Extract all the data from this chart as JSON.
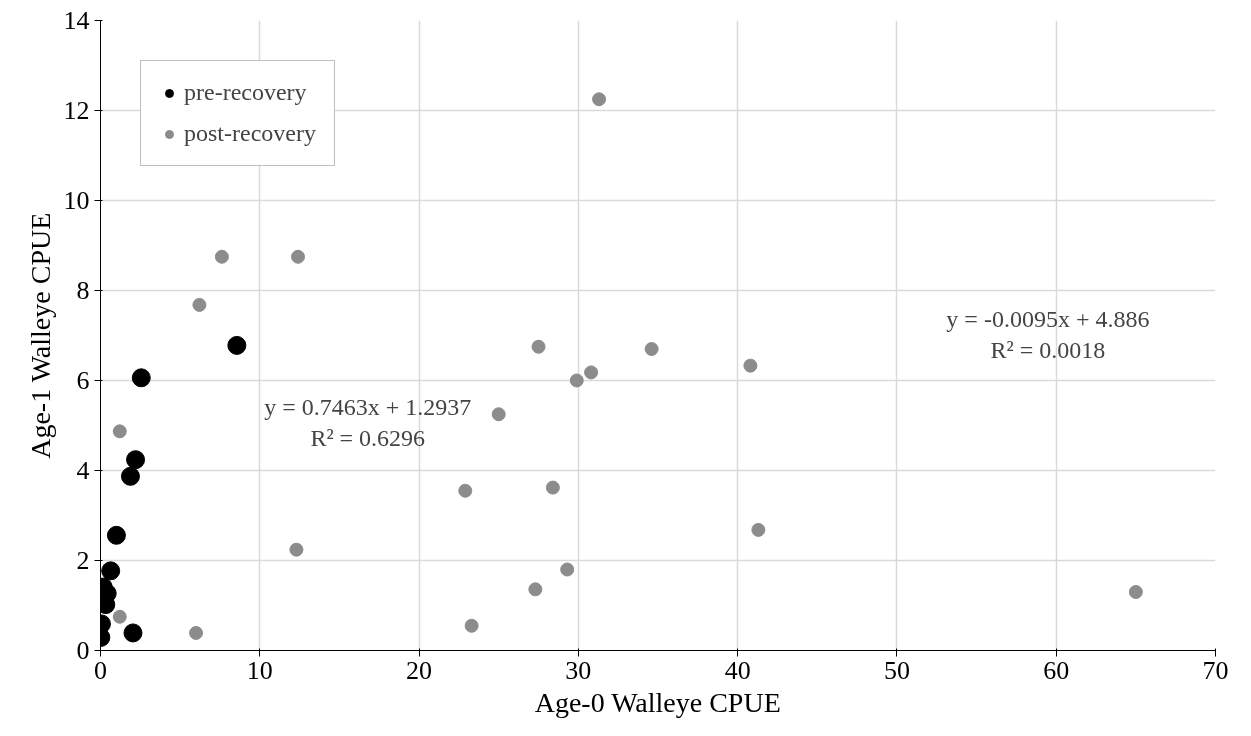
{
  "chart_data": {
    "type": "scatter",
    "xlabel": "Age-0 Walleye CPUE",
    "ylabel": "Age-1 Walleye CPUE",
    "xlim": [
      0,
      70
    ],
    "xticks": [
      0,
      10,
      20,
      30,
      40,
      50,
      60,
      70
    ],
    "ylim": [
      0,
      14
    ],
    "yticks": [
      0,
      2,
      4,
      6,
      8,
      10,
      12,
      14
    ],
    "grid": true,
    "legend": "top left",
    "marker": "circle",
    "series": [
      {
        "name": "pre-recovery",
        "color": "#000000",
        "x": [
          8.56,
          2.56,
          2.2,
          1.88,
          1.0,
          0.64,
          0.17,
          0.42,
          0.33,
          0.06,
          0.02,
          2.04
        ],
        "values": [
          6.78,
          6.06,
          4.24,
          3.87,
          2.56,
          1.77,
          1.41,
          1.27,
          1.02,
          0.59,
          0.29,
          0.39
        ]
      },
      {
        "name": "post-recovery",
        "color": "#8c8c8c",
        "x": [
          1.21,
          1.21,
          6.0,
          7.62,
          12.4,
          6.21,
          31.3,
          27.5,
          29.9,
          30.8,
          34.6,
          40.8,
          25.0,
          22.9,
          28.4,
          41.3,
          12.3,
          29.3,
          27.3,
          23.3,
          65.0
        ],
        "values": [
          4.87,
          0.75,
          0.39,
          8.75,
          8.75,
          7.68,
          12.25,
          6.75,
          6.0,
          6.18,
          6.7,
          6.33,
          5.25,
          3.55,
          3.62,
          2.68,
          2.24,
          1.8,
          1.36,
          0.55,
          1.3
        ]
      }
    ],
    "annotations": [
      "y = 0.7463x + 1.2937",
      "R² = 0.6296",
      "y = -0.0095x + 4.886",
      "R² = 0.0018"
    ]
  }
}
